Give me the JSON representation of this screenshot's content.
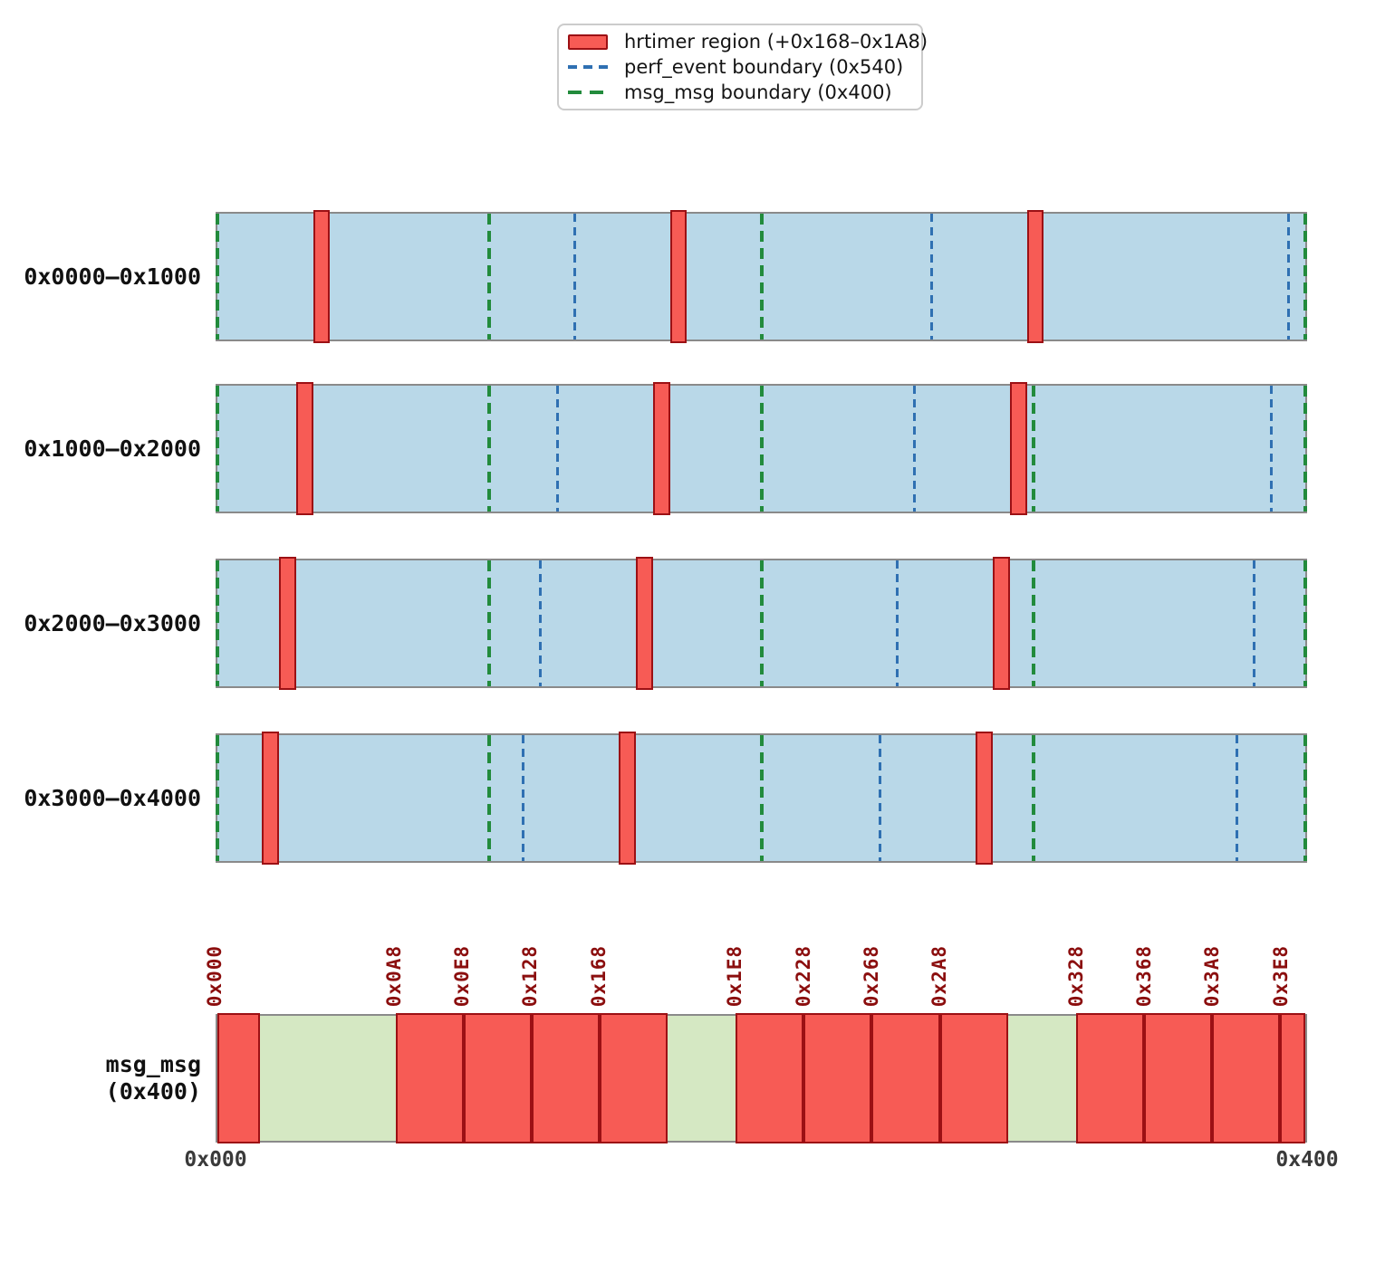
{
  "colors": {
    "page_fill": "#b9d8e8",
    "page_border": "#8a8a8a",
    "hrtimer_fill": "#f75b55",
    "hrtimer_border": "#9c1014",
    "perf_event_dash": "#2f70b2",
    "msg_msg_dash": "#228b3c",
    "free_fill": "#d5e8c3",
    "tick_label_color": "#8b0e0e",
    "axis_label_color": "#3a3a3a"
  },
  "legend": {
    "items": [
      {
        "label": "hrtimer region (+0x168–0x1A8)",
        "type": "patch",
        "color": "#f75b55"
      },
      {
        "label": "perf_event boundary (0x540)",
        "type": "dashed-line",
        "color": "#2f70b2"
      },
      {
        "label": "msg_msg boundary (0x400)",
        "type": "dashed-line",
        "color": "#228b3c"
      }
    ]
  },
  "chart_data": {
    "type": "bar",
    "subtype": "memory-layout-interval-map",
    "title": "",
    "legend_entries": [
      "hrtimer region (+0x168–0x1A8)",
      "perf_event boundary (0x540)",
      "msg_msg boundary (0x400)"
    ],
    "page_size_hex": "0x1000",
    "perf_event_stride_hex": "0x540",
    "msg_msg_stride_hex": "0x400",
    "hrtimer_offset_in_perf_event_hex": [
      "0x168",
      "0x1A8"
    ],
    "pages": [
      {
        "label": "0x0000–0x1000",
        "start": "0x0000",
        "end": "0x1000",
        "hrtimer_regions": [
          [
            "0x168",
            "0x1A8"
          ],
          [
            "0x6A8",
            "0x6E8"
          ],
          [
            "0xBE8",
            "0xC28"
          ]
        ],
        "perf_event_boundaries": [
          "0x540",
          "0xA80",
          "0xFC0"
        ],
        "msg_msg_boundaries": [
          "0x0000",
          "0x0400",
          "0x0800",
          "0x0C00",
          "0x1000"
        ]
      },
      {
        "label": "0x1000–0x2000",
        "start": "0x1000",
        "end": "0x2000",
        "hrtimer_regions": [
          [
            "0x1128",
            "0x1168"
          ],
          [
            "0x1668",
            "0x16A8"
          ],
          [
            "0x1BA8",
            "0x1BE8"
          ]
        ],
        "perf_event_boundaries": [
          "0x1500",
          "0x1A40",
          "0x1F80"
        ],
        "msg_msg_boundaries": [
          "0x1000",
          "0x1400",
          "0x1800",
          "0x1C00",
          "0x2000"
        ]
      },
      {
        "label": "0x2000–0x3000",
        "start": "0x2000",
        "end": "0x3000",
        "hrtimer_regions": [
          [
            "0x20E8",
            "0x2128"
          ],
          [
            "0x2628",
            "0x2668"
          ],
          [
            "0x2B68",
            "0x2BA8"
          ]
        ],
        "perf_event_boundaries": [
          "0x24C0",
          "0x2A00",
          "0x2F40"
        ],
        "msg_msg_boundaries": [
          "0x2000",
          "0x2400",
          "0x2800",
          "0x2C00",
          "0x3000"
        ]
      },
      {
        "label": "0x3000–0x4000",
        "start": "0x3000",
        "end": "0x4000",
        "hrtimer_regions": [
          [
            "0x30A8",
            "0x30E8"
          ],
          [
            "0x35E8",
            "0x3628"
          ],
          [
            "0x3B28",
            "0x3B68"
          ]
        ],
        "perf_event_boundaries": [
          "0x3480",
          "0x39C0",
          "0x3F00"
        ],
        "msg_msg_boundaries": [
          "0x3000",
          "0x3400",
          "0x3800",
          "0x3C00",
          "0x4000"
        ]
      }
    ],
    "msg_msg_bar": {
      "label_line1": "msg_msg",
      "label_line2": "(0x400)",
      "size": "0x400",
      "tick_labels": [
        "0x000",
        "0x0A8",
        "0x0E8",
        "0x128",
        "0x168",
        "0x1E8",
        "0x228",
        "0x268",
        "0x2A8",
        "0x328",
        "0x368",
        "0x3A8",
        "0x3E8"
      ],
      "hrtimer_cells": [
        [
          "0x000",
          "0x028"
        ],
        [
          "0x0A8",
          "0x0E8"
        ],
        [
          "0x0E8",
          "0x128"
        ],
        [
          "0x128",
          "0x168"
        ],
        [
          "0x168",
          "0x1A8"
        ],
        [
          "0x1E8",
          "0x228"
        ],
        [
          "0x228",
          "0x268"
        ],
        [
          "0x268",
          "0x2A8"
        ],
        [
          "0x2A8",
          "0x2E8"
        ],
        [
          "0x328",
          "0x368"
        ],
        [
          "0x368",
          "0x3A8"
        ],
        [
          "0x3A8",
          "0x3E8"
        ],
        [
          "0x3E8",
          "0x400"
        ]
      ],
      "free_cells": [
        [
          "0x028",
          "0x0A8"
        ],
        [
          "0x1A8",
          "0x1E8"
        ],
        [
          "0x2E8",
          "0x328"
        ]
      ],
      "axis_labels": [
        "0x000",
        "0x400"
      ]
    }
  }
}
